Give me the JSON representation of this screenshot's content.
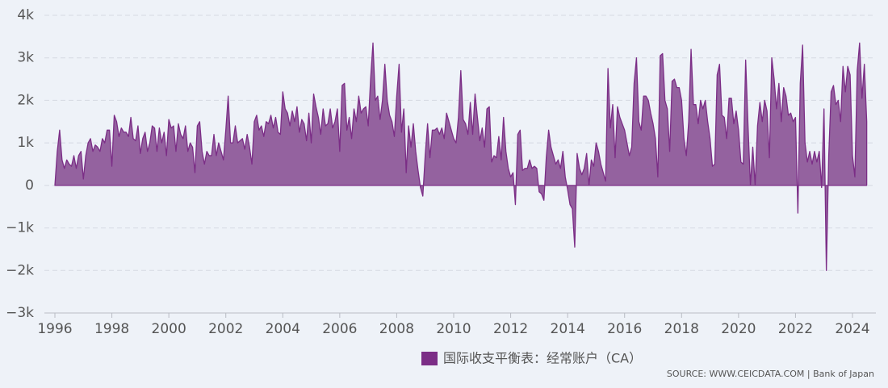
{
  "chart_data": {
    "type": "area",
    "categories": [
      "1996",
      null,
      null,
      null,
      null,
      null,
      null,
      null,
      null,
      null,
      null,
      null,
      null,
      null,
      null,
      null,
      null,
      null,
      null,
      null,
      null,
      null,
      null,
      null,
      "1998",
      null,
      null,
      null,
      null,
      null,
      null,
      null,
      null,
      null,
      null,
      null,
      null,
      null,
      null,
      null,
      null,
      null,
      null,
      null,
      null,
      null,
      null,
      null,
      "2000",
      null,
      null,
      null,
      null,
      null,
      null,
      null,
      null,
      null,
      null,
      null,
      null,
      null,
      null,
      null,
      null,
      null,
      null,
      null,
      null,
      null,
      null,
      null,
      "2002",
      null,
      null,
      null,
      null,
      null,
      null,
      null,
      null,
      null,
      null,
      null,
      null,
      null,
      null,
      null,
      null,
      null,
      null,
      null,
      null,
      null,
      null,
      null,
      "2004",
      null,
      null,
      null,
      null,
      null,
      null,
      null,
      null,
      null,
      null,
      null,
      null,
      null,
      null,
      null,
      null,
      null,
      null,
      null,
      null,
      null,
      null,
      null,
      "2006",
      null,
      null,
      null,
      null,
      null,
      null,
      null,
      null,
      null,
      null,
      null,
      null,
      null,
      null,
      null,
      null,
      null,
      null,
      null,
      null,
      null,
      null,
      null,
      "2008",
      null,
      null,
      null,
      null,
      null,
      null,
      null,
      null,
      null,
      null,
      null,
      null,
      null,
      null,
      null,
      null,
      null,
      null,
      null,
      null,
      null,
      null,
      null,
      "2010",
      null,
      null,
      null,
      null,
      null,
      null,
      null,
      null,
      null,
      null,
      null,
      null,
      null,
      null,
      null,
      null,
      null,
      null,
      null,
      null,
      null,
      null,
      null,
      "2012",
      null,
      null,
      null,
      null,
      null,
      null,
      null,
      null,
      null,
      null,
      null,
      null,
      null,
      null,
      null,
      null,
      null,
      null,
      null,
      null,
      null,
      null,
      null,
      "2014",
      null,
      null,
      null,
      null,
      null,
      null,
      null,
      null,
      null,
      null,
      null,
      null,
      null,
      null,
      null,
      null,
      null,
      null,
      null,
      null,
      null,
      null,
      null,
      "2016",
      null,
      null,
      null,
      null,
      null,
      null,
      null,
      null,
      null,
      null,
      null,
      null,
      null,
      null,
      null,
      null,
      null,
      null,
      null,
      null,
      null,
      null,
      null,
      "2018",
      null,
      null,
      null,
      null,
      null,
      null,
      null,
      null,
      null,
      null,
      null,
      null,
      null,
      null,
      null,
      null,
      null,
      null,
      null,
      null,
      null,
      null,
      null,
      "2020",
      null,
      null,
      null,
      null,
      null,
      null,
      null,
      null,
      null,
      null,
      null,
      null,
      null,
      null,
      null,
      null,
      null,
      null,
      null,
      null,
      null,
      null,
      null,
      "2022",
      null,
      null,
      null,
      null,
      null,
      null,
      null,
      null,
      null,
      null,
      null,
      null,
      null,
      null,
      null,
      null,
      null,
      null,
      null,
      null,
      null,
      null,
      null,
      "2024",
      null,
      null,
      null,
      null,
      null,
      null
    ],
    "series": [
      {
        "name": "国际收支平衡表：经常账户（CA）",
        "color": "#7b2d86",
        "fill": "#94629f",
        "values": [
          0,
          800,
          1300,
          600,
          400,
          600,
          500,
          450,
          700,
          400,
          700,
          800,
          150,
          700,
          1000,
          1100,
          800,
          950,
          900,
          800,
          1100,
          1000,
          1300,
          1300,
          450,
          1650,
          1500,
          1150,
          1350,
          1250,
          1250,
          1150,
          1600,
          1100,
          1050,
          1400,
          750,
          1100,
          1250,
          800,
          1000,
          1400,
          1350,
          800,
          1350,
          1000,
          1250,
          700,
          1550,
          1350,
          1400,
          800,
          1450,
          1200,
          1100,
          1400,
          800,
          1000,
          900,
          300,
          1400,
          1500,
          800,
          500,
          800,
          700,
          700,
          1200,
          700,
          1000,
          800,
          600,
          1300,
          2100,
          1000,
          1000,
          1400,
          1000,
          1050,
          1100,
          850,
          1200,
          900,
          500,
          1500,
          1650,
          1300,
          1400,
          1150,
          1500,
          1450,
          1650,
          1350,
          1600,
          1250,
          1200,
          2200,
          1800,
          1700,
          1400,
          1750,
          1500,
          1850,
          1250,
          1550,
          1450,
          1050,
          1700,
          1000,
          2150,
          1850,
          1600,
          1200,
          1800,
          1400,
          1450,
          1800,
          1350,
          1500,
          1800,
          800,
          2350,
          2400,
          1300,
          1600,
          1100,
          1800,
          1500,
          2100,
          1700,
          1800,
          1850,
          1400,
          2500,
          3350,
          2000,
          2100,
          1550,
          2000,
          2850,
          2000,
          1650,
          1500,
          1150,
          2100,
          2850,
          1250,
          1800,
          300,
          1400,
          900,
          1450,
          800,
          350,
          -50,
          -250,
          700,
          1450,
          650,
          1300,
          1300,
          1350,
          1200,
          1350,
          1100,
          1700,
          1500,
          1300,
          1100,
          1000,
          1600,
          2700,
          1550,
          1450,
          1200,
          1950,
          1200,
          2150,
          1600,
          1050,
          1350,
          900,
          1800,
          1850,
          550,
          700,
          650,
          1150,
          600,
          1600,
          800,
          400,
          200,
          300,
          -450,
          1200,
          1300,
          350,
          400,
          400,
          600,
          400,
          450,
          400,
          -150,
          -200,
          -350,
          650,
          1300,
          900,
          700,
          500,
          600,
          400,
          800,
          200,
          -100,
          -450,
          -550,
          -1450,
          750,
          400,
          250,
          400,
          750,
          0,
          600,
          450,
          1000,
          800,
          500,
          300,
          100,
          2750,
          1350,
          1900,
          650,
          1850,
          1600,
          1450,
          1300,
          1000,
          700,
          900,
          2400,
          3000,
          1500,
          1300,
          2100,
          2100,
          2000,
          1700,
          1450,
          1100,
          200,
          3050,
          3100,
          2000,
          1800,
          800,
          2450,
          2500,
          2300,
          2300,
          2000,
          1100,
          700,
          1500,
          3200,
          1900,
          1900,
          1450,
          2000,
          1800,
          2000,
          1500,
          1100,
          450,
          500,
          2600,
          2850,
          1650,
          1600,
          1100,
          2050,
          2050,
          1450,
          1750,
          1300,
          550,
          500,
          2950,
          1400,
          0,
          900,
          0,
          1400,
          1950,
          1500,
          2000,
          1750,
          650,
          3000,
          2500,
          1800,
          2400,
          1500,
          2300,
          2100,
          1650,
          1700,
          1500,
          1600,
          -650,
          2400,
          3300,
          1000,
          550,
          800,
          500,
          800,
          550,
          800,
          -50,
          1800,
          -2000,
          700,
          2200,
          2350,
          1900,
          2000,
          1500,
          2800,
          2200,
          2800,
          2600,
          700,
          200,
          2700,
          3350,
          2050,
          2850,
          1500
        ]
      }
    ],
    "ylim": [
      -3000,
      4000
    ],
    "yticks": [
      {
        "value": -3000,
        "label": "−3k"
      },
      {
        "value": -2000,
        "label": "−2k"
      },
      {
        "value": -1000,
        "label": "−1k"
      },
      0,
      {
        "value": 1000,
        "label": "1k"
      },
      {
        "value": 2000,
        "label": "2k"
      },
      {
        "value": 3000,
        "label": "3k"
      },
      {
        "value": 4000,
        "label": "4k"
      }
    ],
    "grid": true,
    "legend": "bottom",
    "source": "SOURCE: WWW.CEICDATA.COM | Bank of Japan"
  }
}
